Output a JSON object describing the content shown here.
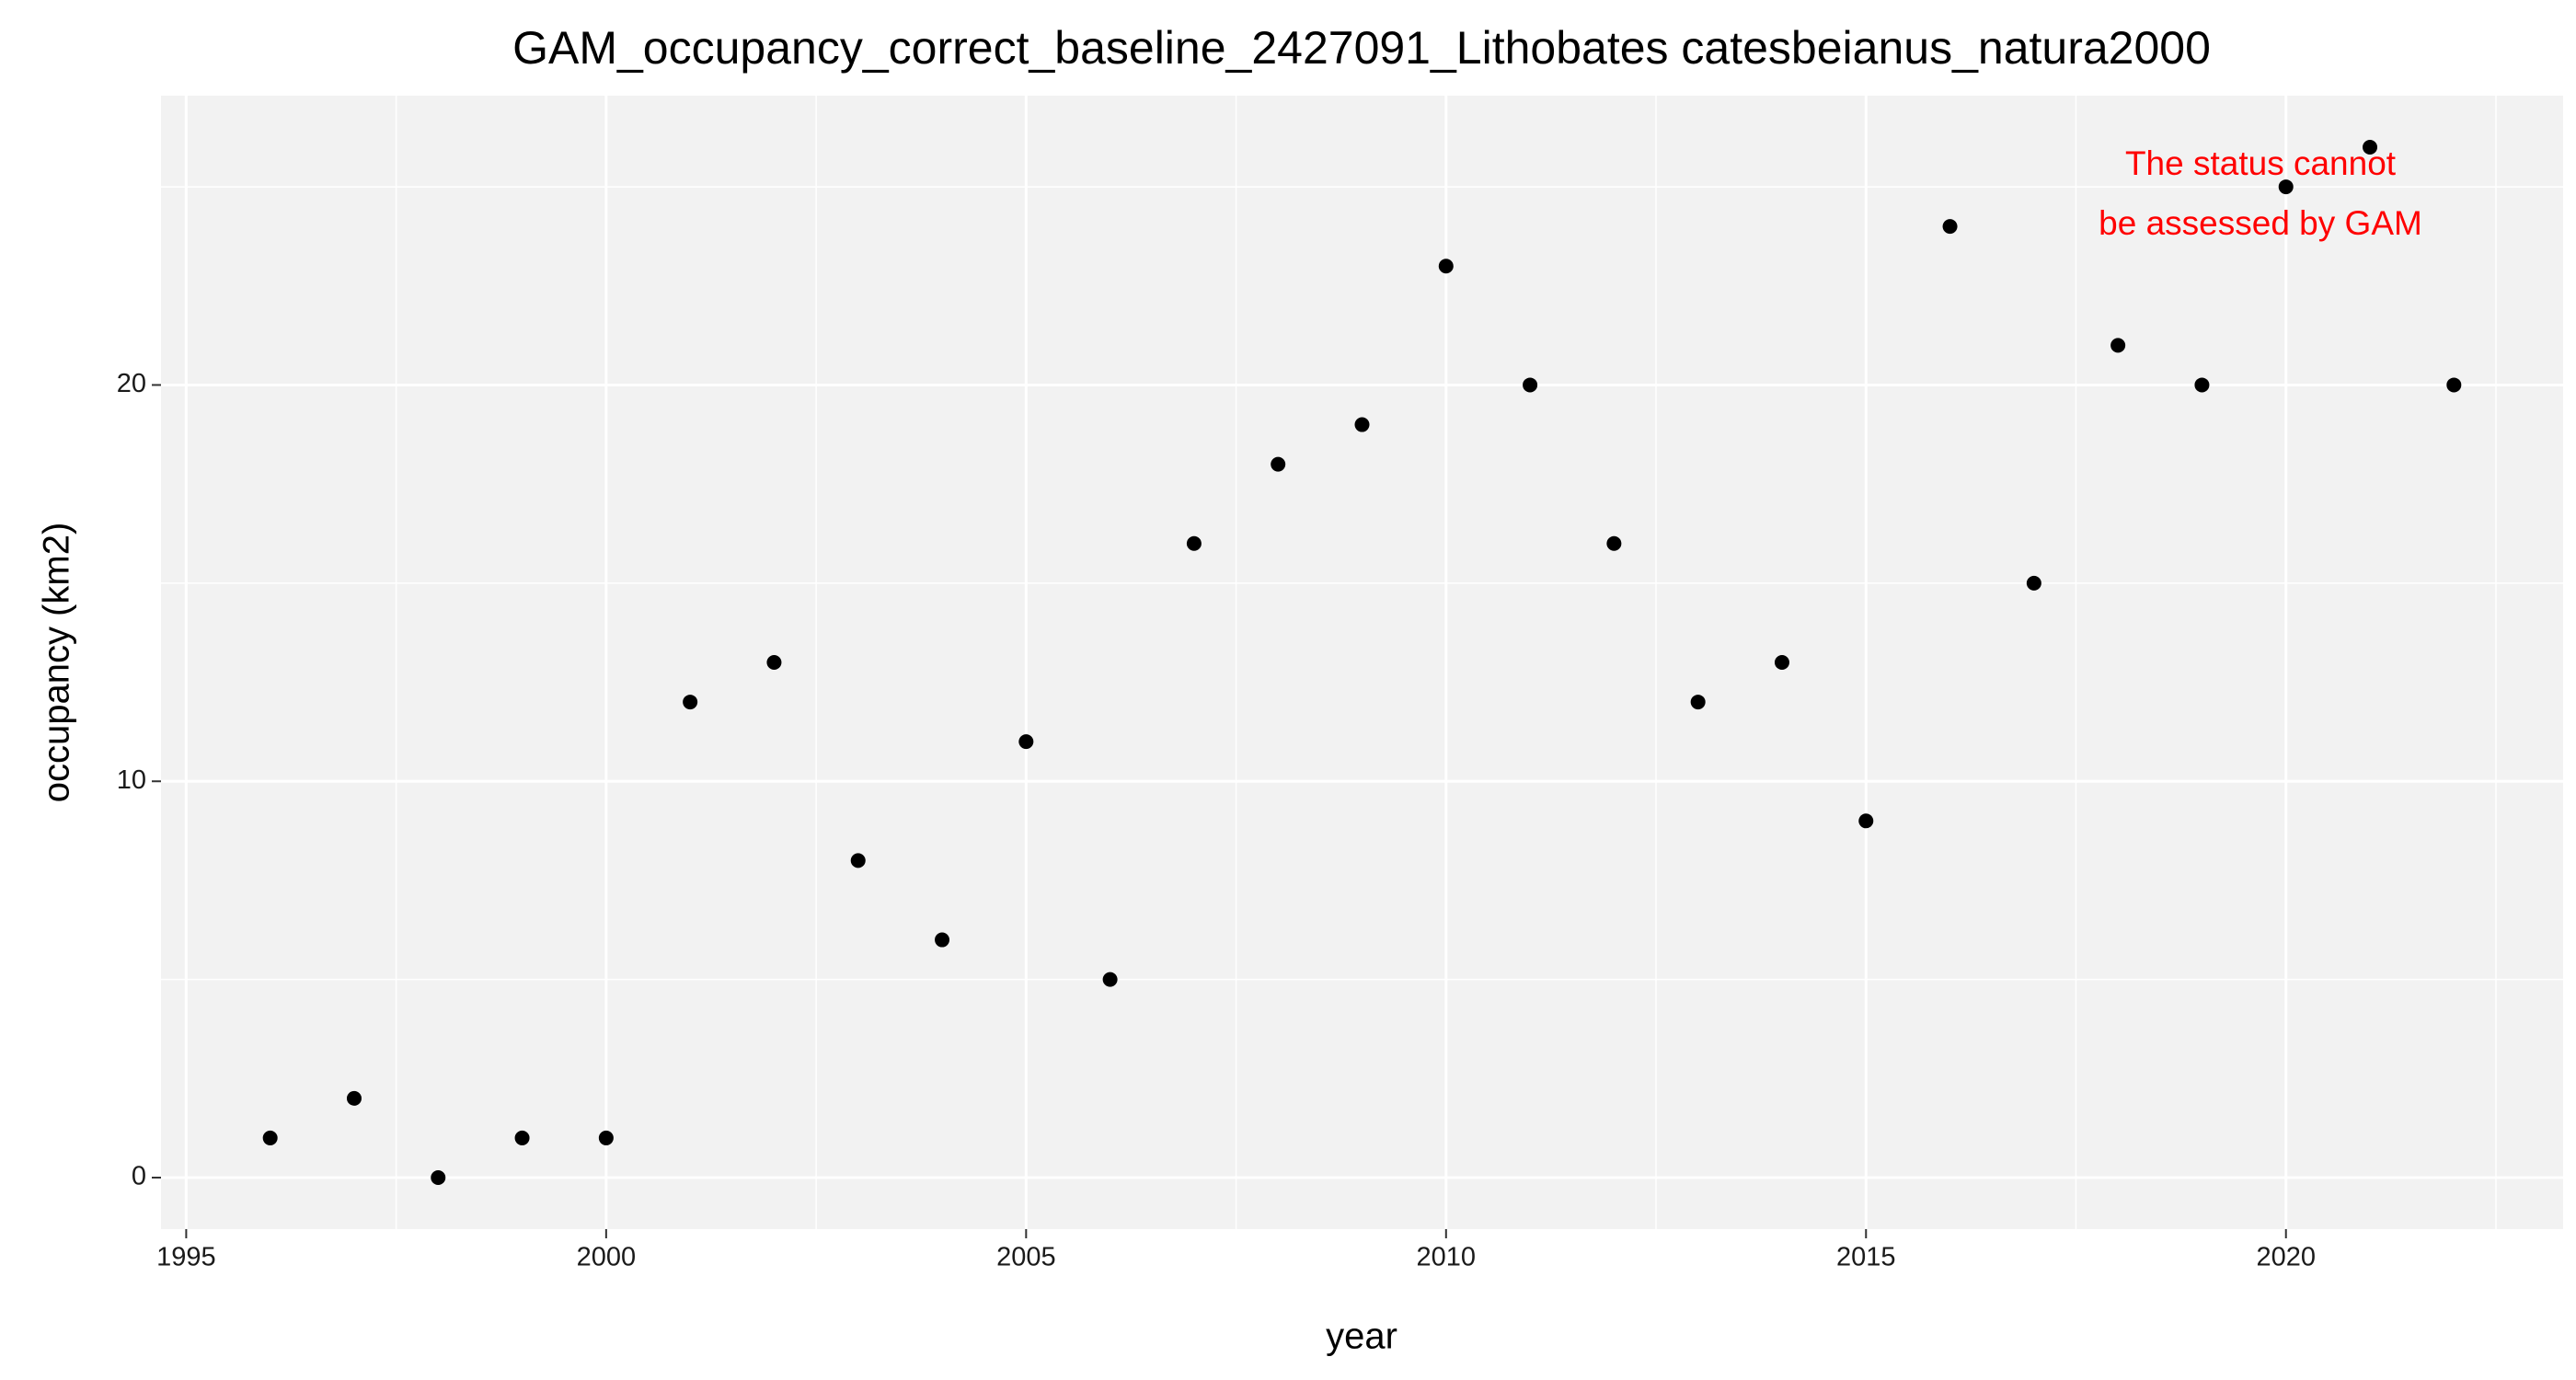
{
  "chart_data": {
    "type": "scatter",
    "title": "GAM_occupancy_correct_baseline_2427091_Lithobates catesbeianus_natura2000",
    "xlabel": "year",
    "ylabel": "occupancy (km2)",
    "annotation": [
      "The status cannot",
      "be assessed by GAM"
    ],
    "annotation_color": "#ff0000",
    "color": "#000000",
    "x": [
      1996,
      1997,
      1998,
      1999,
      2000,
      2001,
      2002,
      2003,
      2004,
      2005,
      2006,
      2007,
      2008,
      2009,
      2010,
      2011,
      2012,
      2013,
      2014,
      2015,
      2016,
      2017,
      2018,
      2019,
      2020,
      2021,
      2022
    ],
    "values": [
      1,
      2,
      0,
      1,
      1,
      12,
      13,
      8,
      6,
      11,
      5,
      16,
      18,
      19,
      23,
      20,
      16,
      12,
      13,
      9,
      24,
      15,
      21,
      20,
      25,
      26,
      20
    ],
    "xlim": [
      1994.7,
      2023.3
    ],
    "xticks": [
      1995,
      2000,
      2005,
      2010,
      2015,
      2020
    ],
    "ylim": [
      -1.3,
      27.3
    ],
    "yticks": [
      0,
      10,
      20
    ],
    "grid": true
  }
}
